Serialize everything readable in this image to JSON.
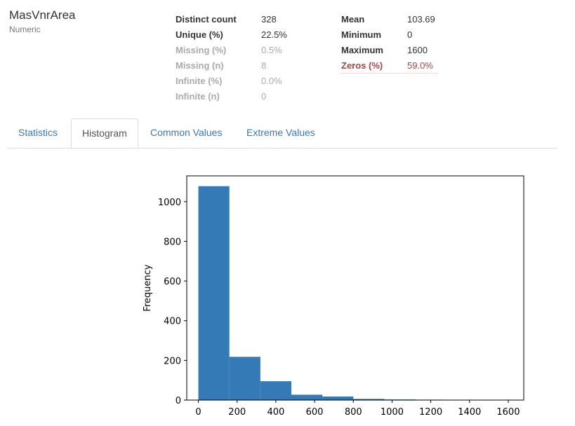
{
  "variable": {
    "name": "MasVnrArea",
    "type": "Numeric"
  },
  "stats_left": [
    {
      "label": "Distinct count",
      "value": "328",
      "state": "normal"
    },
    {
      "label": "Unique (%)",
      "value": "22.5%",
      "state": "normal"
    },
    {
      "label": "Missing (%)",
      "value": "0.5%",
      "state": "ignore"
    },
    {
      "label": "Missing (n)",
      "value": "8",
      "state": "ignore"
    },
    {
      "label": "Infinite (%)",
      "value": "0.0%",
      "state": "ignore"
    },
    {
      "label": "Infinite (n)",
      "value": "0",
      "state": "ignore"
    }
  ],
  "stats_right": [
    {
      "label": "Mean",
      "value": "103.69",
      "state": "normal"
    },
    {
      "label": "Minimum",
      "value": "0",
      "state": "normal"
    },
    {
      "label": "Maximum",
      "value": "1600",
      "state": "normal"
    },
    {
      "label": "Zeros (%)",
      "value": "59.0%",
      "state": "alert"
    }
  ],
  "tabs": [
    {
      "label": "Statistics",
      "active": false
    },
    {
      "label": "Histogram",
      "active": true
    },
    {
      "label": "Common Values",
      "active": false
    },
    {
      "label": "Extreme Values",
      "active": false
    }
  ],
  "colors": {
    "bar": "#337ab7",
    "link": "#337ab7",
    "alert": "#a94442"
  },
  "chart_data": {
    "type": "bar",
    "ylabel": "Frequency",
    "xlabel": "",
    "xlim": [
      -60,
      1680
    ],
    "ylim": [
      0,
      1130
    ],
    "bin_edges": [
      0,
      160,
      320,
      480,
      640,
      800,
      960,
      1120,
      1280,
      1440,
      1600
    ],
    "values": [
      1078,
      218,
      95,
      27,
      18,
      6,
      3,
      2,
      0,
      1
    ],
    "xticks": [
      0,
      200,
      400,
      600,
      800,
      1000,
      1200,
      1400,
      1600
    ],
    "yticks": [
      0,
      200,
      400,
      600,
      800,
      1000
    ],
    "grid": false
  }
}
